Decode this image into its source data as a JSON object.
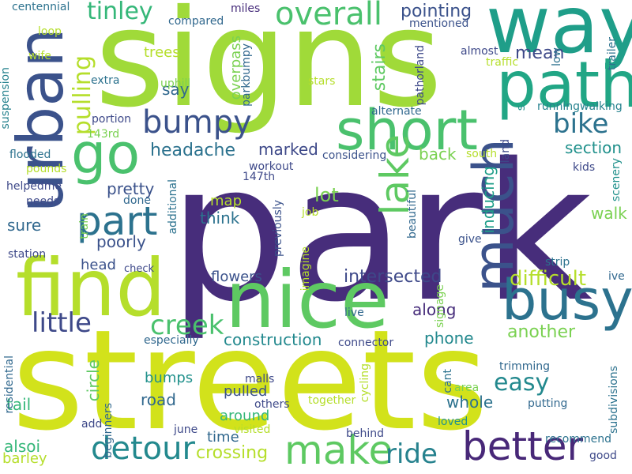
{
  "word_cloud": {
    "words": [
      {
        "text": "park",
        "color": "#472d7b"
      },
      {
        "text": "streets",
        "color": "#d2e21b"
      },
      {
        "text": "signs",
        "color": "#a0da39"
      },
      {
        "text": "way",
        "color": "#1f9e89"
      },
      {
        "text": "nice",
        "color": "#5ec962"
      },
      {
        "text": "find",
        "color": "#b5de2b"
      },
      {
        "text": "urban",
        "color": "#3b528b"
      },
      {
        "text": "path",
        "color": "#21a685"
      },
      {
        "text": "short",
        "color": "#4ac16d"
      },
      {
        "text": "go",
        "color": "#4ac16d"
      },
      {
        "text": "much",
        "color": "#3b528b"
      },
      {
        "text": "busy",
        "color": "#2c728e"
      },
      {
        "text": "better",
        "color": "#482878"
      },
      {
        "text": "part",
        "color": "#2c728e"
      },
      {
        "text": "lake",
        "color": "#5ec962"
      },
      {
        "text": "make",
        "color": "#5ec962"
      },
      {
        "text": "detour",
        "color": "#23898e"
      },
      {
        "text": "bumpy",
        "color": "#3b528b"
      },
      {
        "text": "overall",
        "color": "#4ac16d"
      },
      {
        "text": "ride",
        "color": "#26828e"
      },
      {
        "text": "little",
        "color": "#3e4989"
      },
      {
        "text": "creek",
        "color": "#4ac16d"
      },
      {
        "text": "bike",
        "color": "#2c728e"
      },
      {
        "text": "easy",
        "color": "#23898e"
      },
      {
        "text": "tinley",
        "color": "#35b779"
      },
      {
        "text": "pulling",
        "color": "#b5de2b"
      },
      {
        "text": "difficult",
        "color": "#b5de2b"
      },
      {
        "text": "intersected",
        "color": "#3e4989"
      },
      {
        "text": "pointing",
        "color": "#3b528b"
      },
      {
        "text": "stairs",
        "color": "#5ec962"
      },
      {
        "text": "mean",
        "color": "#3e4989"
      },
      {
        "text": "headache",
        "color": "#2c728e"
      },
      {
        "text": "another",
        "color": "#7ad151"
      },
      {
        "text": "crossing",
        "color": "#b5de2b"
      },
      {
        "text": "construction",
        "color": "#23898e"
      },
      {
        "text": "inducing",
        "color": "#1f9e89"
      },
      {
        "text": "poorly",
        "color": "#3b528b"
      },
      {
        "text": "pretty",
        "color": "#3b528b"
      },
      {
        "text": "along",
        "color": "#472d7b"
      },
      {
        "text": "section",
        "color": "#21918c"
      },
      {
        "text": "marked",
        "color": "#3e4989"
      },
      {
        "text": "road",
        "color": "#31688e"
      },
      {
        "text": "whole",
        "color": "#2c728e"
      },
      {
        "text": "tail",
        "color": "#35b779"
      },
      {
        "text": "say",
        "color": "#31688e"
      },
      {
        "text": "trees",
        "color": "#b5de2b"
      },
      {
        "text": "lot",
        "color": "#7ad151"
      },
      {
        "text": "back",
        "color": "#7ad151"
      },
      {
        "text": "phone",
        "color": "#23898e"
      },
      {
        "text": "sure",
        "color": "#31688e"
      },
      {
        "text": "think",
        "color": "#2c728e"
      },
      {
        "text": "walk",
        "color": "#7ad151"
      },
      {
        "text": "map",
        "color": "#b5de2b"
      },
      {
        "text": "head",
        "color": "#3b528b"
      },
      {
        "text": "flowers",
        "color": "#3b528b"
      },
      {
        "text": "bumps",
        "color": "#21918c"
      },
      {
        "text": "pulled",
        "color": "#3b528b"
      },
      {
        "text": "around",
        "color": "#35b779"
      },
      {
        "text": "alsoi",
        "color": "#35b779"
      },
      {
        "text": "barley",
        "color": "#b5de2b"
      },
      {
        "text": "time",
        "color": "#31688e"
      },
      {
        "text": "circle",
        "color": "#5ec962"
      },
      {
        "text": "overpass",
        "color": "#7ad151"
      },
      {
        "text": "extra",
        "color": "#2c728e"
      },
      {
        "text": "portion",
        "color": "#3e4989"
      },
      {
        "text": "uphill",
        "color": "#7ad151"
      },
      {
        "text": "143rd",
        "color": "#7ad151"
      },
      {
        "text": "flooded",
        "color": "#2c728e"
      },
      {
        "text": "considering",
        "color": "#3b528b"
      },
      {
        "text": "south",
        "color": "#b5de2b"
      },
      {
        "text": "kids",
        "color": "#3e4989"
      },
      {
        "text": "scenery",
        "color": "#21918c"
      },
      {
        "text": "land",
        "color": "#3e4989"
      },
      {
        "text": "alternate",
        "color": "#31688e"
      },
      {
        "text": "pathorland",
        "color": "#3e4989"
      },
      {
        "text": "almost",
        "color": "#3e4989"
      },
      {
        "text": "traffic",
        "color": "#b5de2b"
      },
      {
        "text": "low",
        "color": "#2c728e"
      },
      {
        "text": "trailer",
        "color": "#2c728e"
      },
      {
        "text": "runningwalking",
        "color": "#26828e"
      },
      {
        "text": "s",
        "color": "#21918c"
      },
      {
        "text": "stars",
        "color": "#b5de2b"
      },
      {
        "text": "mentioned",
        "color": "#3b528b"
      },
      {
        "text": "miles",
        "color": "#472d7b"
      },
      {
        "text": "parkbumpy",
        "color": "#31688e"
      },
      {
        "text": "compared",
        "color": "#31688e"
      },
      {
        "text": "centennial",
        "color": "#2c728e"
      },
      {
        "text": "loop",
        "color": "#b5de2b"
      },
      {
        "text": "wife",
        "color": "#b5de2b"
      },
      {
        "text": "suspension",
        "color": "#26828e"
      },
      {
        "text": "pounds",
        "color": "#b5de2b"
      },
      {
        "text": "helpedme",
        "color": "#3e4989"
      },
      {
        "text": "needs",
        "color": "#3e4989"
      },
      {
        "text": "train",
        "color": "#7ad151"
      },
      {
        "text": "station",
        "color": "#3e4989"
      },
      {
        "text": "check",
        "color": "#3e4989"
      },
      {
        "text": "done",
        "color": "#31688e"
      },
      {
        "text": "additional",
        "color": "#2c728e"
      },
      {
        "text": "147th",
        "color": "#3e4989"
      },
      {
        "text": "workout",
        "color": "#3e4989"
      },
      {
        "text": "job",
        "color": "#b5de2b"
      },
      {
        "text": "previously",
        "color": "#3b528b"
      },
      {
        "text": "imagine",
        "color": "#b5de2b"
      },
      {
        "text": "live",
        "color": "#31688e"
      },
      {
        "text": "beautiful",
        "color": "#31688e"
      },
      {
        "text": "signage",
        "color": "#7ad151"
      },
      {
        "text": "give",
        "color": "#3b528b"
      },
      {
        "text": "strip",
        "color": "#2c728e"
      },
      {
        "text": "ive",
        "color": "#31688e"
      },
      {
        "text": "especially",
        "color": "#31688e"
      },
      {
        "text": "connector",
        "color": "#3e4989"
      },
      {
        "text": "trimming",
        "color": "#31688e"
      },
      {
        "text": "residential",
        "color": "#31688e"
      },
      {
        "text": "malls",
        "color": "#3e4989"
      },
      {
        "text": "cycling",
        "color": "#b5de2b"
      },
      {
        "text": "cant",
        "color": "#2c728e"
      },
      {
        "text": "area",
        "color": "#7ad151"
      },
      {
        "text": "subdivisions",
        "color": "#2c728e"
      },
      {
        "text": "others",
        "color": "#3e4989"
      },
      {
        "text": "together",
        "color": "#b5de2b"
      },
      {
        "text": "putting",
        "color": "#31688e"
      },
      {
        "text": "beginners",
        "color": "#31688e"
      },
      {
        "text": "add",
        "color": "#3e4989"
      },
      {
        "text": "june",
        "color": "#3e4989"
      },
      {
        "text": "visited",
        "color": "#b5de2b"
      },
      {
        "text": "behind",
        "color": "#3e4989"
      },
      {
        "text": "loved",
        "color": "#21918c"
      },
      {
        "text": "recommend",
        "color": "#2c728e"
      },
      {
        "text": "good",
        "color": "#3e4989"
      }
    ]
  }
}
